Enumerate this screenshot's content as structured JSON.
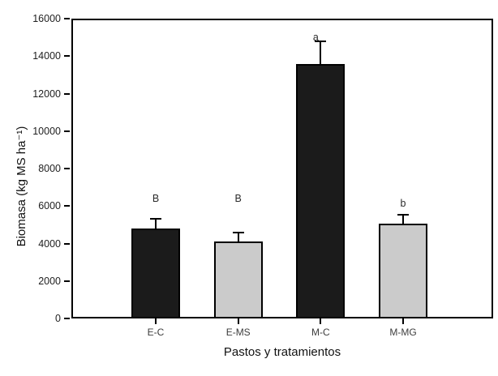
{
  "figure": {
    "background": "#ffffff"
  },
  "chart_data": {
    "type": "bar",
    "title": "",
    "xlabel": "Pastos y tratamientos",
    "ylabel": "Biomasa (kg MS ha⁻¹)",
    "categories": [
      "E-C",
      "E-MS",
      "M-C",
      "M-MG"
    ],
    "values": [
      4800,
      4100,
      13600,
      5050
    ],
    "errors_plus": [
      500,
      480,
      1200,
      500
    ],
    "sig_letters": [
      {
        "text": "B",
        "y": 6100,
        "dx": 0
      },
      {
        "text": "B",
        "y": 6100,
        "dx": 0
      },
      {
        "text": "a",
        "y": 14700,
        "dx": -6
      },
      {
        "text": "b",
        "y": 5850,
        "dx": 0
      }
    ],
    "bar_colors": [
      "#1b1b1b",
      "#cbcbcb",
      "#1b1b1b",
      "#cbcbcb"
    ],
    "bar_border_color": "#000000",
    "axis_color": "#000000",
    "ylim": [
      0,
      16000
    ],
    "ytick_step": 2000,
    "ytick_labels": [
      "0",
      "2000",
      "4000",
      "6000",
      "8000",
      "10000",
      "12000",
      "14000",
      "16000"
    ],
    "grid": false,
    "frame": true,
    "legend": null
  }
}
